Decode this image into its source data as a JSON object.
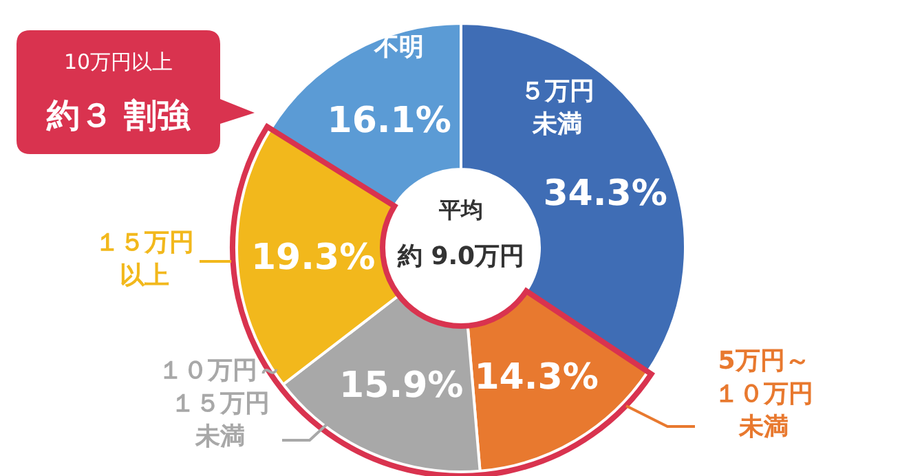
{
  "chart_data": {
    "type": "donut",
    "categories": [
      "５万円未満",
      "5万円～１０万円未満",
      "１０万円～１５万円未満",
      "１５万円以上",
      "不明"
    ],
    "values": [
      34.3,
      14.3,
      15.9,
      19.3,
      16.1
    ],
    "colors": [
      "#3f6db5",
      "#e8792f",
      "#a8a8a8",
      "#f2b81c",
      "#5b9bd5"
    ],
    "value_labels": [
      "34.3%",
      "14.3%",
      "15.9%",
      "19.3%",
      "16.1%"
    ],
    "annotations": [
      "平均",
      "約 9.0万円",
      "10万円以上",
      "約３ 割強"
    ]
  }
}
